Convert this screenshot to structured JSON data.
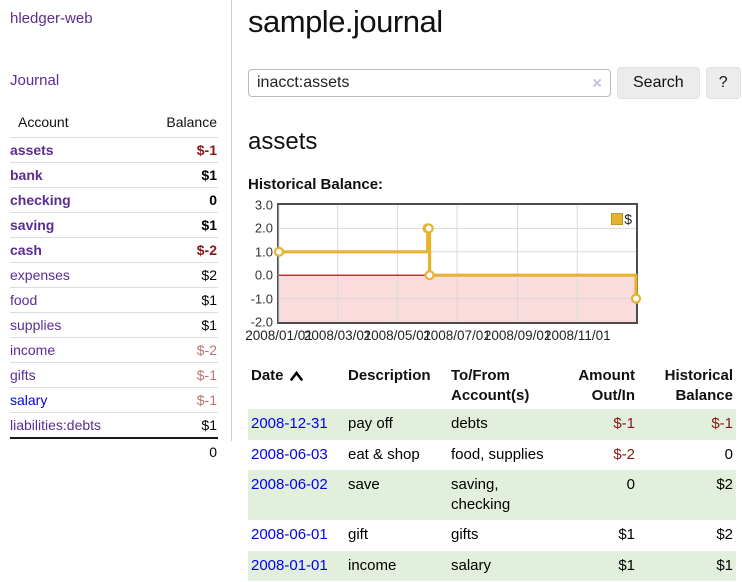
{
  "app": {
    "brand": "hledger-web"
  },
  "sidebar": {
    "journal_link": "Journal",
    "accounts": {
      "col_account": "Account",
      "col_balance": "Balance",
      "rows": [
        {
          "name": "assets",
          "depth": 0,
          "balance": "$-1"
        },
        {
          "name": "bank",
          "depth": 1,
          "balance": "$1"
        },
        {
          "name": "checking",
          "depth": 2,
          "balance": "0"
        },
        {
          "name": "saving",
          "depth": 2,
          "balance": "$1"
        },
        {
          "name": "cash",
          "depth": 1,
          "balance": "$-2"
        },
        {
          "name": "expenses",
          "depth": 0,
          "balance": "$2"
        },
        {
          "name": "food",
          "depth": 1,
          "balance": "$1"
        },
        {
          "name": "supplies",
          "depth": 1,
          "balance": "$1"
        },
        {
          "name": "income",
          "depth": 0,
          "balance": "$-2"
        },
        {
          "name": "gifts",
          "depth": 1,
          "balance": "$-1"
        },
        {
          "name": "salary",
          "depth": 1,
          "balance": "$-1"
        },
        {
          "name": "liabilities:debts",
          "depth": 0,
          "balance": "$1"
        }
      ],
      "total": "0"
    }
  },
  "main": {
    "title": "sample.journal",
    "search": {
      "value": "inacct:assets",
      "clear": "×",
      "button": "Search",
      "help": "?"
    },
    "heading": "assets",
    "chart_title": "Historical Balance:"
  },
  "chart_data": {
    "type": "line",
    "step": true,
    "title": "Historical Balance",
    "series": [
      {
        "name": "$",
        "color": "#e6b330",
        "points": [
          [
            "2008-01-01",
            1
          ],
          [
            "2008-06-01",
            2
          ],
          [
            "2008-06-02",
            2
          ],
          [
            "2008-06-03",
            0
          ],
          [
            "2008-12-31",
            -1
          ]
        ]
      }
    ],
    "x_range": [
      "2008-01-01",
      "2008-12-31"
    ],
    "x_tick_dates": [
      "2008-01-01",
      "2008-03-01",
      "2008-05-01",
      "2008-07-01",
      "2008-09-01",
      "2008-11-01"
    ],
    "x_tick_labels": [
      "2008/01/01",
      "2008/03/01",
      "2008/05/01",
      "2008/07/01",
      "2008/09/01",
      "2008/11/01"
    ],
    "y_ticks": [
      3.0,
      2.0,
      1.0,
      0.0,
      -1.0,
      -2.0
    ],
    "ylim": [
      -2,
      3
    ],
    "legend": "$",
    "legend_position": "top-right",
    "grid": true,
    "negative_region_color": "#fbdcdc",
    "zero_line_color": "#a00000",
    "grid_color": "#d9d9d9"
  },
  "register": {
    "headers": {
      "date": "Date",
      "description": "Description",
      "tofrom_1": "To/From",
      "tofrom_2": "Account(s)",
      "amount_1": "Amount",
      "amount_2": "Out/In",
      "hist_1": "Historical",
      "hist_2": "Balance"
    },
    "rows": [
      {
        "date": "2008-12-31",
        "description": "pay off",
        "accounts": "debts",
        "amount": "$-1",
        "balance": "$-1"
      },
      {
        "date": "2008-06-03",
        "description": "eat & shop",
        "accounts": "food, supplies",
        "amount": "$-2",
        "balance": "0"
      },
      {
        "date": "2008-06-02",
        "description": "save",
        "accounts": "saving, checking",
        "amount": "0",
        "balance": "$2"
      },
      {
        "date": "2008-06-01",
        "description": "gift",
        "accounts": "gifts",
        "amount": "$1",
        "balance": "$2"
      },
      {
        "date": "2008-01-01",
        "description": "income",
        "accounts": "salary",
        "amount": "$1",
        "balance": "$1"
      }
    ]
  },
  "colors": {
    "accent_purple": "#5c2d91",
    "link_blue": "#0202ee",
    "negative_strong": "#8b1515",
    "negative_soft": "#bb7272",
    "row_green": "#e1efdc",
    "chart_gold": "#e6b330"
  }
}
